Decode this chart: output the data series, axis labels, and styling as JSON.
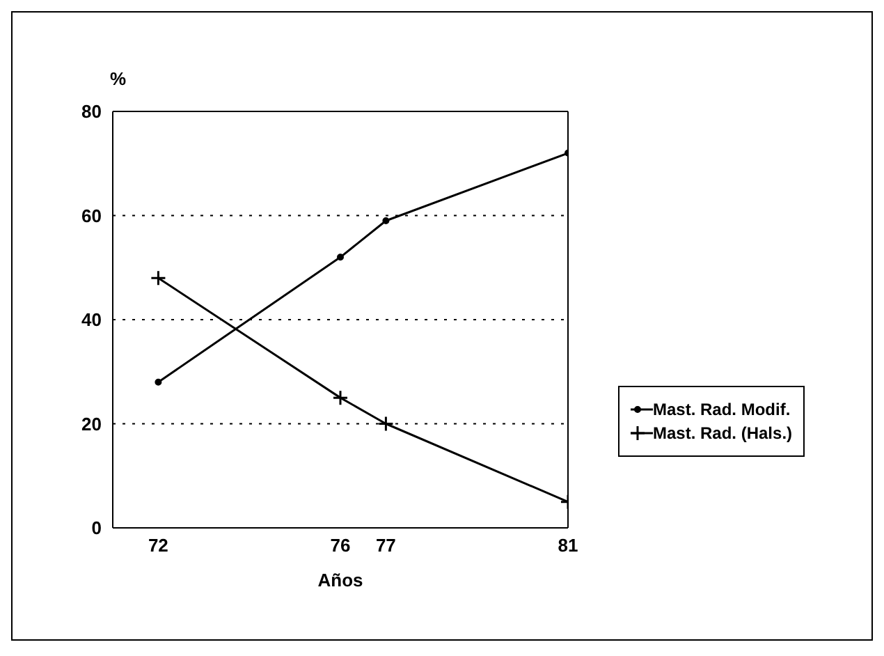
{
  "chart_data": {
    "type": "line",
    "ylabel": "%",
    "xlabel": "Años",
    "x": [
      72,
      76,
      77,
      81
    ],
    "xlim": [
      71,
      81
    ],
    "xticks": [
      72,
      76,
      77,
      81
    ],
    "ylim": [
      0,
      80
    ],
    "yticks": [
      0,
      20,
      40,
      60,
      80
    ],
    "grid": "y",
    "legend": "right",
    "line_style": "solid",
    "series": [
      {
        "name": "Mast. Rad. Modif.",
        "color": "#000000",
        "marker": "circle",
        "values": [
          28,
          52,
          59,
          72
        ]
      },
      {
        "name": "Mast. Rad. (Hals.)",
        "color": "#000000",
        "marker": "cross",
        "values": [
          48,
          25,
          20,
          5
        ]
      }
    ]
  }
}
